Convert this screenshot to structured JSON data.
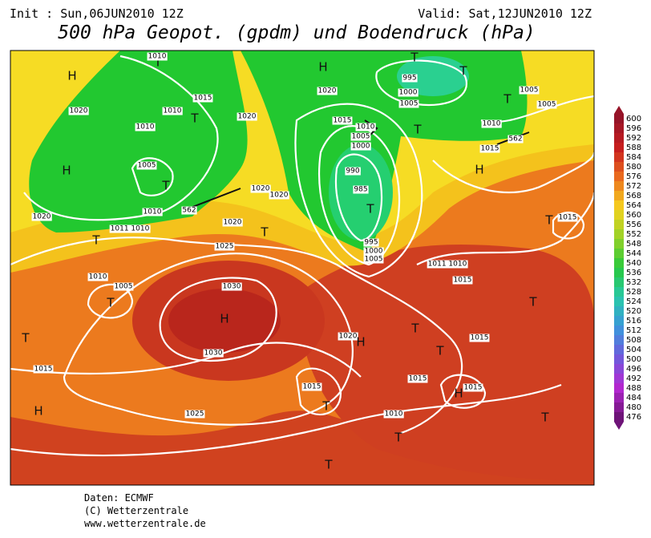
{
  "header": {
    "init": "Init : Sun,06JUN2010 12Z",
    "valid": "Valid: Sat,12JUN2010 12Z",
    "title": "500 hPa Geopot. (gpdm) und Bodendruck (hPa)"
  },
  "legend": {
    "levels": [
      600,
      596,
      592,
      588,
      584,
      580,
      576,
      572,
      568,
      564,
      560,
      556,
      552,
      548,
      544,
      540,
      536,
      532,
      528,
      524,
      520,
      516,
      512,
      508,
      504,
      500,
      496,
      492,
      488,
      484,
      480,
      476
    ]
  },
  "map": {
    "labels": [
      "H",
      "T",
      "T",
      "1010",
      "1015",
      "1010",
      "1010",
      "1020",
      "H",
      "1005",
      "T",
      "1010",
      "562",
      "1020",
      "1011 1010",
      "T",
      "1020",
      "1020",
      "1020",
      "1020",
      "T",
      "1025",
      "H",
      "1020",
      "1015",
      "1010",
      "1005",
      "1000",
      "990",
      "985",
      "T",
      "995",
      "1000",
      "1005",
      "T",
      "995",
      "1000",
      "1005",
      "T",
      "T",
      "T",
      "1005",
      "1005",
      "1010",
      "1015",
      "562",
      "H",
      "T",
      "1015",
      "1011 1010",
      "1015",
      "1010",
      "1005",
      "T",
      "T",
      "1030",
      "H",
      "1030",
      "1020",
      "H",
      "T",
      "T",
      "1015",
      "T",
      "1015",
      "H",
      "1025",
      "1015",
      "T",
      "1015",
      "H",
      "1015",
      "1010",
      "T",
      "T",
      "T"
    ]
  },
  "footer": [
    "Daten: ECMWF",
    "(C) Wetterzentrale",
    "www.wetterzentrale.de"
  ]
}
